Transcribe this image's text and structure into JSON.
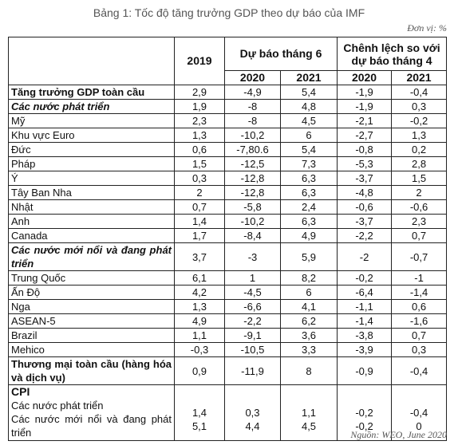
{
  "title": "Bảng 1: Tốc độ tăng trưởng GDP theo dự báo của IMF",
  "unit": "Đơn vị: %",
  "header": {
    "y2019": "2019",
    "forecast_june": "Dự báo tháng 6",
    "diff": "Chênh lệch so với dự báo tháng 4",
    "y2020": "2020",
    "y2021": "2021",
    "y2020b": "2020",
    "y2021b": "2021"
  },
  "rows": [
    {
      "label": "Tăng trưởng GDP toàn cầu",
      "v": [
        "2,9",
        "-4,9",
        "5,4",
        "-1,9",
        "-0,4"
      ]
    },
    {
      "label": "Các nước phát triển",
      "v": [
        "1,9",
        "-8",
        "4,8",
        "-1,9",
        "0,3"
      ]
    },
    {
      "label": "Mỹ",
      "v": [
        "2,3",
        "-8",
        "4,5",
        "-2,1",
        "-0,2"
      ]
    },
    {
      "label": "Khu vực Euro",
      "v": [
        "1,3",
        "-10,2",
        "6",
        "-2,7",
        "1,3"
      ]
    },
    {
      "label": "Đức",
      "v": [
        "0,6",
        "-7,80.6",
        "5,4",
        "-0,8",
        "0,2"
      ]
    },
    {
      "label": "Pháp",
      "v": [
        "1,5",
        "-12,5",
        "7,3",
        "-5,3",
        "2,8"
      ]
    },
    {
      "label": "Ý",
      "v": [
        "0,3",
        "-12,8",
        "6,3",
        "-3,7",
        "1,5"
      ]
    },
    {
      "label": "Tây Ban Nha",
      "v": [
        "2",
        "-12,8",
        "6,3",
        "-4,8",
        "2"
      ]
    },
    {
      "label": "Nhật",
      "v": [
        "0,7",
        "-5,8",
        "2,4",
        "-0,6",
        "-0,6"
      ]
    },
    {
      "label": "Anh",
      "v": [
        "1,4",
        "-10,2",
        "6,3",
        "-3,7",
        "2,3"
      ]
    },
    {
      "label": "Canada",
      "v": [
        "1,7",
        "-8,4",
        "4,9",
        "-2,2",
        "0,7"
      ]
    },
    {
      "label": "Các nước mới nổi và đang phát triển",
      "v": [
        "3,7",
        "-3",
        "5,9",
        "-2",
        "-0,7"
      ]
    },
    {
      "label": "Trung Quốc",
      "v": [
        "6,1",
        "1",
        "8,2",
        "-0,2",
        "-1"
      ]
    },
    {
      "label": "Ấn Độ",
      "v": [
        "4,2",
        "-4,5",
        "6",
        "-6,4",
        "-1,4"
      ]
    },
    {
      "label": "Nga",
      "v": [
        "1,3",
        "-6,6",
        "4,1",
        "-1,1",
        "0,6"
      ]
    },
    {
      "label": "ASEAN-5",
      "v": [
        "4,9",
        "-2,2",
        "6,2",
        "-1,4",
        "-1,6"
      ]
    },
    {
      "label": "Brazil",
      "v": [
        "1,1",
        "-9,1",
        "3,6",
        "-3,8",
        "0,7"
      ]
    },
    {
      "label": "Mehico",
      "v": [
        "-0,3",
        "-10,5",
        "3,3",
        "-3,9",
        "0,3"
      ]
    },
    {
      "label": "Thương mại toàn cầu (hàng hóa và dịch vụ)",
      "v": [
        "0,9",
        "-11,9",
        "8",
        "-0,9",
        "-0,4"
      ]
    }
  ],
  "cpi": {
    "label": "CPI",
    "sub1": "Các nước phát triển",
    "sub2": "Các nước mới nổi và đang phát triển",
    "v1": [
      "1,4",
      "0,3",
      "1,1",
      "-0,2",
      "-0,4"
    ],
    "v2": [
      "5,1",
      "4,4",
      "4,5",
      "-0,2",
      "0"
    ]
  },
  "source": "Nguồn: WEO, June 2020"
}
